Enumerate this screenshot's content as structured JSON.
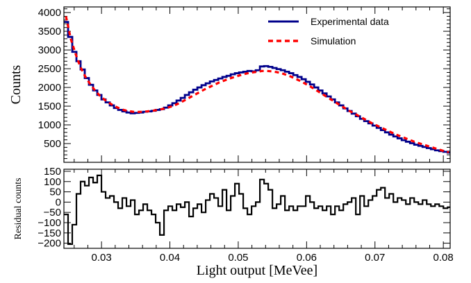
{
  "colors": {
    "experimental": "#00008b",
    "simulation": "#ff0000",
    "residual": "#000000",
    "frame": "#000000"
  },
  "chart_data": [
    {
      "type": "line",
      "xlabel": "",
      "ylabel": "Counts",
      "xlim": [
        0.0245,
        0.081
      ],
      "ylim": [
        0,
        4150
      ],
      "xticks": [
        0.03,
        0.04,
        0.05,
        0.06,
        0.07,
        0.08
      ],
      "yticks": [
        500,
        1000,
        1500,
        2000,
        2500,
        3000,
        3500,
        4000
      ],
      "ytick_labels": [
        "500",
        "1000",
        "1500",
        "2000",
        "2500",
        "3000",
        "3500",
        "4000"
      ],
      "grid": false,
      "legend_position": "top-right",
      "legend": [
        "Experimental data",
        "Simulation"
      ],
      "series": [
        {
          "name": "Experimental data",
          "style": "step",
          "x": [
            0.0245,
            0.02511,
            0.02572,
            0.02633,
            0.02694,
            0.02755,
            0.02816,
            0.02877,
            0.02938,
            0.02999,
            0.0306,
            0.03121,
            0.03182,
            0.03243,
            0.03304,
            0.03365,
            0.03426,
            0.03487,
            0.03548,
            0.03609,
            0.0367,
            0.03731,
            0.03792,
            0.03853,
            0.03914,
            0.03975,
            0.04036,
            0.04097,
            0.04158,
            0.04219,
            0.0428,
            0.04341,
            0.04402,
            0.04463,
            0.04524,
            0.04585,
            0.04646,
            0.04707,
            0.04768,
            0.04829,
            0.0489,
            0.04951,
            0.05012,
            0.05073,
            0.05134,
            0.05195,
            0.05256,
            0.05317,
            0.05378,
            0.05439,
            0.055,
            0.05561,
            0.05622,
            0.05683,
            0.05744,
            0.05805,
            0.05866,
            0.05927,
            0.05988,
            0.06049,
            0.0611,
            0.06171,
            0.06232,
            0.06293,
            0.06354,
            0.06415,
            0.06476,
            0.06537,
            0.06598,
            0.06659,
            0.0672,
            0.06781,
            0.06842,
            0.06903,
            0.06964,
            0.07025,
            0.07086,
            0.07147,
            0.07208,
            0.07269,
            0.0733,
            0.07391,
            0.07452,
            0.07513,
            0.07574,
            0.07635,
            0.07696,
            0.07757,
            0.07818,
            0.07879,
            0.0794,
            0.08001,
            0.08062
          ],
          "values": [
            3750,
            3350,
            2950,
            2700,
            2480,
            2250,
            2070,
            1920,
            1800,
            1680,
            1600,
            1520,
            1450,
            1400,
            1360,
            1330,
            1310,
            1320,
            1330,
            1350,
            1360,
            1375,
            1400,
            1420,
            1460,
            1520,
            1580,
            1650,
            1720,
            1800,
            1870,
            1940,
            2000,
            2060,
            2110,
            2160,
            2200,
            2240,
            2280,
            2310,
            2350,
            2380,
            2400,
            2420,
            2440,
            2430,
            2460,
            2560,
            2570,
            2550,
            2520,
            2490,
            2460,
            2420,
            2380,
            2330,
            2280,
            2220,
            2150,
            2080,
            2000,
            1920,
            1840,
            1760,
            1680,
            1600,
            1520,
            1440,
            1370,
            1300,
            1230,
            1160,
            1100,
            1040,
            980,
            920,
            860,
            800,
            740,
            690,
            640,
            590,
            550,
            510,
            470,
            440,
            410,
            380,
            350,
            320,
            300,
            280,
            260
          ]
        },
        {
          "name": "Simulation",
          "style": "dashed",
          "x": [
            0.0248,
            0.0255,
            0.0262,
            0.0269,
            0.0276,
            0.0283,
            0.029,
            0.0297,
            0.0304,
            0.0311,
            0.0318,
            0.0325,
            0.0332,
            0.0339,
            0.0346,
            0.0353,
            0.036,
            0.0367,
            0.0374,
            0.0381,
            0.0388,
            0.0395,
            0.0402,
            0.0409,
            0.0416,
            0.0423,
            0.043,
            0.0437,
            0.0444,
            0.0451,
            0.0458,
            0.0465,
            0.0472,
            0.0479,
            0.0486,
            0.0493,
            0.05,
            0.0507,
            0.0514,
            0.0521,
            0.0528,
            0.0535,
            0.0542,
            0.0549,
            0.0556,
            0.0563,
            0.057,
            0.0577,
            0.0584,
            0.0591,
            0.0598,
            0.0605,
            0.0612,
            0.0619,
            0.0626,
            0.0633,
            0.064,
            0.0647,
            0.0654,
            0.0661,
            0.0668,
            0.0675,
            0.0682,
            0.0689,
            0.0696,
            0.0703,
            0.071,
            0.0717,
            0.0724,
            0.0731,
            0.0738,
            0.0745,
            0.0752,
            0.0759,
            0.0766,
            0.0773,
            0.078,
            0.0787,
            0.0794,
            0.0801,
            0.0808
          ],
          "values": [
            3900,
            3300,
            2900,
            2550,
            2300,
            2100,
            1930,
            1790,
            1680,
            1590,
            1510,
            1450,
            1400,
            1370,
            1350,
            1345,
            1350,
            1360,
            1375,
            1395,
            1420,
            1450,
            1490,
            1540,
            1600,
            1670,
            1740,
            1810,
            1880,
            1950,
            2010,
            2070,
            2130,
            2180,
            2230,
            2270,
            2310,
            2350,
            2380,
            2400,
            2420,
            2440,
            2440,
            2430,
            2410,
            2380,
            2340,
            2290,
            2230,
            2170,
            2100,
            2030,
            1950,
            1870,
            1790,
            1710,
            1630,
            1550,
            1470,
            1390,
            1320,
            1250,
            1180,
            1110,
            1040,
            980,
            920,
            860,
            800,
            740,
            690,
            640,
            590,
            540,
            500,
            460,
            420,
            380,
            340,
            300,
            270
          ]
        }
      ]
    },
    {
      "type": "line",
      "xlabel": "Light output [MeVee]",
      "ylabel": "Residual counts",
      "xlim": [
        0.0245,
        0.081
      ],
      "ylim": [
        -225,
        160
      ],
      "xticks": [
        0.03,
        0.04,
        0.05,
        0.06,
        0.07,
        0.08
      ],
      "xtick_labels": [
        "0.03",
        "0.04",
        "0.05",
        "0.06",
        "0.07",
        "0.08"
      ],
      "yticks": [
        -200,
        -150,
        -100,
        -50,
        0,
        50,
        100,
        150
      ],
      "ytick_labels": [
        "−200",
        "−150",
        "−100",
        "−50",
        "0",
        "50",
        "100",
        "150"
      ],
      "grid": false,
      "series": [
        {
          "name": "",
          "style": "step",
          "x": [
            0.0245,
            0.02511,
            0.02572,
            0.02633,
            0.02694,
            0.02755,
            0.02816,
            0.02877,
            0.02938,
            0.02999,
            0.0306,
            0.03121,
            0.03182,
            0.03243,
            0.03304,
            0.03365,
            0.03426,
            0.03487,
            0.03548,
            0.03609,
            0.0367,
            0.03731,
            0.03792,
            0.03853,
            0.03914,
            0.03975,
            0.04036,
            0.04097,
            0.04158,
            0.04219,
            0.0428,
            0.04341,
            0.04402,
            0.04463,
            0.04524,
            0.04585,
            0.04646,
            0.04707,
            0.04768,
            0.04829,
            0.0489,
            0.04951,
            0.05012,
            0.05073,
            0.05134,
            0.05195,
            0.05256,
            0.05317,
            0.05378,
            0.05439,
            0.055,
            0.05561,
            0.05622,
            0.05683,
            0.05744,
            0.05805,
            0.05866,
            0.05927,
            0.05988,
            0.06049,
            0.0611,
            0.06171,
            0.06232,
            0.06293,
            0.06354,
            0.06415,
            0.06476,
            0.06537,
            0.06598,
            0.06659,
            0.0672,
            0.06781,
            0.06842,
            0.06903,
            0.06964,
            0.07025,
            0.07086,
            0.07147,
            0.07208,
            0.07269,
            0.0733,
            0.07391,
            0.07452,
            0.07513,
            0.07574,
            0.07635,
            0.07696,
            0.07757,
            0.07818,
            0.07879,
            0.0794,
            0.08001,
            0.08062
          ],
          "values": [
            -60,
            -205,
            -110,
            40,
            100,
            80,
            120,
            95,
            130,
            50,
            20,
            30,
            0,
            -30,
            20,
            -20,
            10,
            -60,
            -40,
            -10,
            -40,
            -60,
            -100,
            -160,
            -40,
            -20,
            -40,
            -10,
            -25,
            0,
            -70,
            -30,
            -10,
            -50,
            10,
            40,
            20,
            -20,
            60,
            -40,
            30,
            90,
            40,
            -30,
            -60,
            -20,
            0,
            110,
            90,
            60,
            -30,
            -10,
            30,
            -40,
            -20,
            -40,
            -20,
            -20,
            30,
            0,
            -30,
            -20,
            -40,
            -20,
            -60,
            -20,
            -40,
            -10,
            0,
            20,
            -60,
            30,
            -20,
            10,
            30,
            60,
            70,
            20,
            40,
            0,
            20,
            10,
            -10,
            20,
            0,
            -10,
            10,
            -10,
            -20,
            -10,
            -20,
            -30,
            -25
          ]
        }
      ]
    }
  ]
}
